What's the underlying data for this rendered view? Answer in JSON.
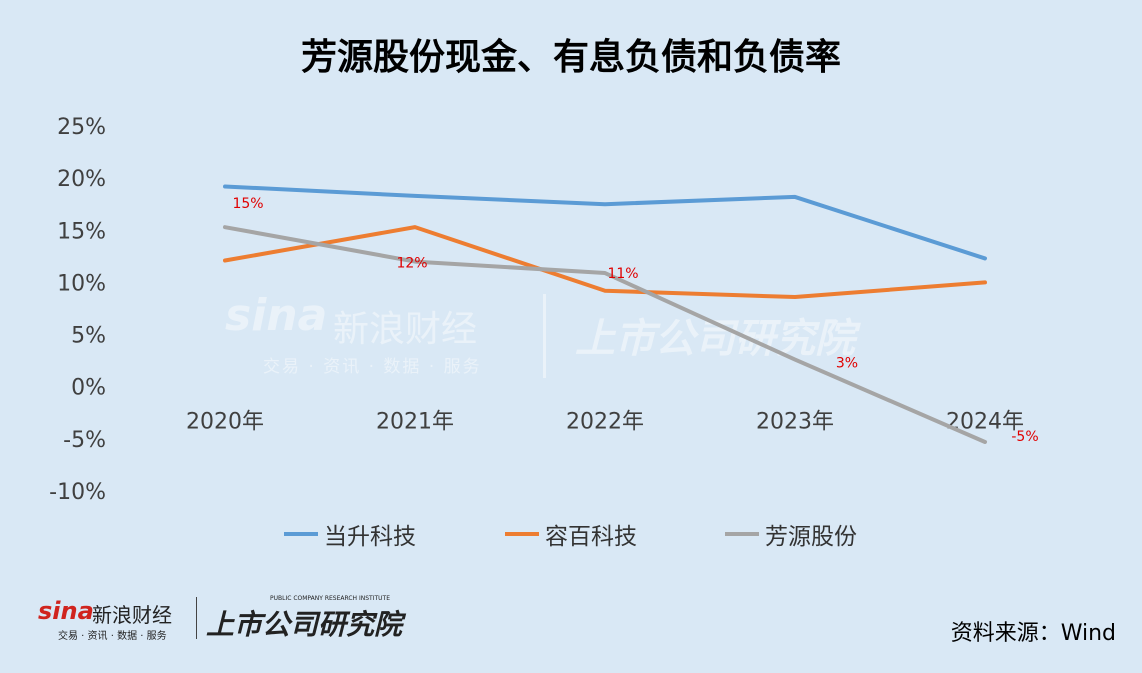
{
  "title": "芳源股份现金、有息负债和负债率",
  "watermark": {
    "brand": "sina",
    "brand_cn": "新浪财经",
    "sub": "交易 · 资讯 · 数据 · 服务",
    "institute": "上市公司研究院"
  },
  "footer": {
    "brand": "sina",
    "brand_cn": "新浪财经",
    "sub": "交易 · 资讯 · 数据 · 服务",
    "tagline": "PUBLIC COMPANY RESEARCH INSTITUTE",
    "institute": "上市公司研究院",
    "source": "资料来源：Wind"
  },
  "chart_data": {
    "type": "line",
    "title": "芳源股份现金、有息负债和负债率",
    "categories": [
      "2020年",
      "2021年",
      "2022年",
      "2023年",
      "2024年"
    ],
    "ylim": [
      -10,
      25
    ],
    "yticks": [
      25,
      20,
      15,
      10,
      5,
      0,
      -5,
      -10
    ],
    "ytick_labels": [
      "25%",
      "20%",
      "15%",
      "10%",
      "5%",
      "0%",
      "-5%",
      "-10%"
    ],
    "grid": false,
    "legend_position": "bottom",
    "series": [
      {
        "name": "当升科技",
        "color": "#5b9bd5",
        "values": [
          19.2,
          18.3,
          17.5,
          18.2,
          12.3
        ]
      },
      {
        "name": "容百科技",
        "color": "#ed7d31",
        "values": [
          12.1,
          15.3,
          9.2,
          8.6,
          10.0
        ]
      },
      {
        "name": "芳源股份",
        "color": "#a5a5a5",
        "values": [
          15.3,
          12.0,
          10.9,
          2.6,
          -5.3
        ],
        "data_labels": [
          "15%",
          "12%",
          "11%",
          "3%",
          "-5%"
        ]
      }
    ],
    "data_label_color": "#e00000"
  }
}
